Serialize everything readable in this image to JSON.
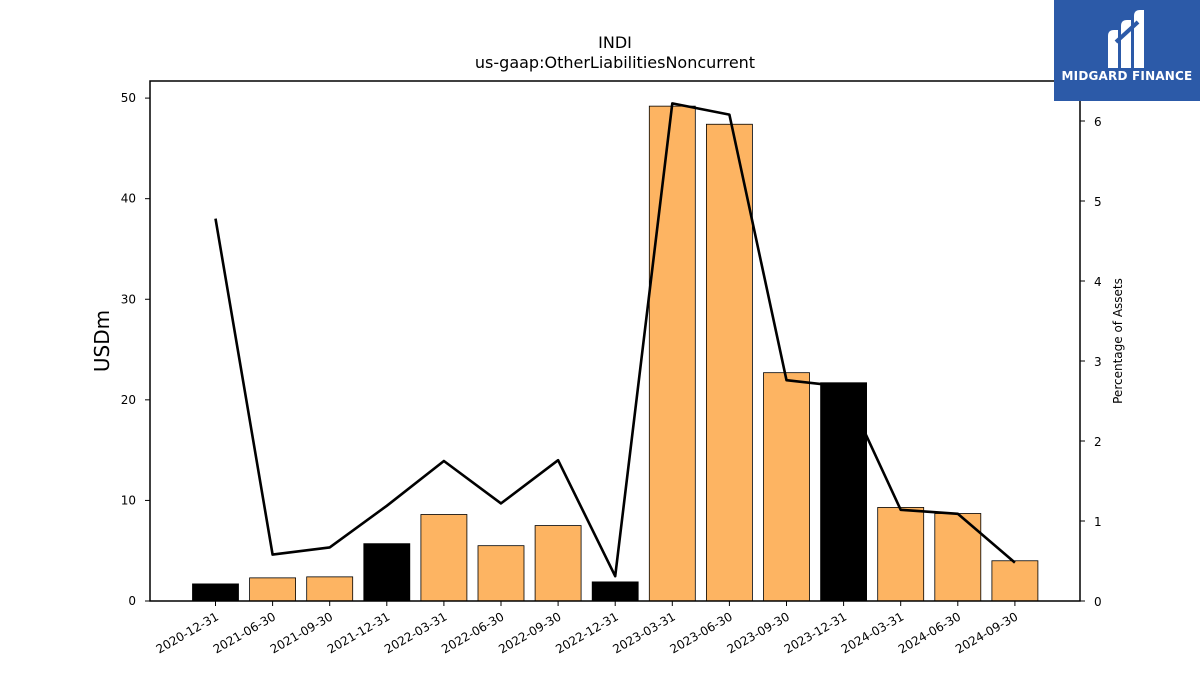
{
  "chart_data": {
    "type": "bar",
    "title": "INDI",
    "subtitle": "us-gaap:OtherLiabilitiesNoncurrent",
    "ylabel": "USDm",
    "y2label": "Percentage of Assets",
    "categories": [
      "2020-12-31",
      "2021-06-30",
      "2021-09-30",
      "2021-12-31",
      "2022-03-31",
      "2022-06-30",
      "2022-09-30",
      "2022-12-31",
      "2023-03-31",
      "2023-06-30",
      "2023-09-30",
      "2023-12-31",
      "2024-03-31",
      "2024-06-30",
      "2024-09-30"
    ],
    "series": [
      {
        "type": "bar",
        "axis": "left",
        "values": [
          1.7,
          2.3,
          2.4,
          5.7,
          8.6,
          5.5,
          7.5,
          1.9,
          49.2,
          47.4,
          22.7,
          21.7,
          9.3,
          8.7,
          4.0
        ],
        "colors": [
          "#000000",
          "#fdb462",
          "#fdb462",
          "#000000",
          "#fdb462",
          "#fdb462",
          "#fdb462",
          "#000000",
          "#fdb462",
          "#fdb462",
          "#fdb462",
          "#000000",
          "#fdb462",
          "#fdb462",
          "#fdb462"
        ]
      },
      {
        "type": "line",
        "axis": "right",
        "color": "#000000",
        "values": [
          4.78,
          0.58,
          0.67,
          1.19,
          1.75,
          1.22,
          1.76,
          0.31,
          6.22,
          6.08,
          2.76,
          2.68,
          1.14,
          1.09,
          0.48
        ]
      }
    ],
    "ylim": [
      0,
      51.7
    ],
    "y2lim": [
      0,
      6.5
    ],
    "yticks": [
      0,
      10,
      20,
      30,
      40,
      50
    ],
    "y2ticks": [
      0,
      1,
      2,
      3,
      4,
      5,
      6
    ],
    "grid": false
  },
  "logo": {
    "brand": "MIDGARD FINANCE",
    "color": "#2c5aa8"
  }
}
